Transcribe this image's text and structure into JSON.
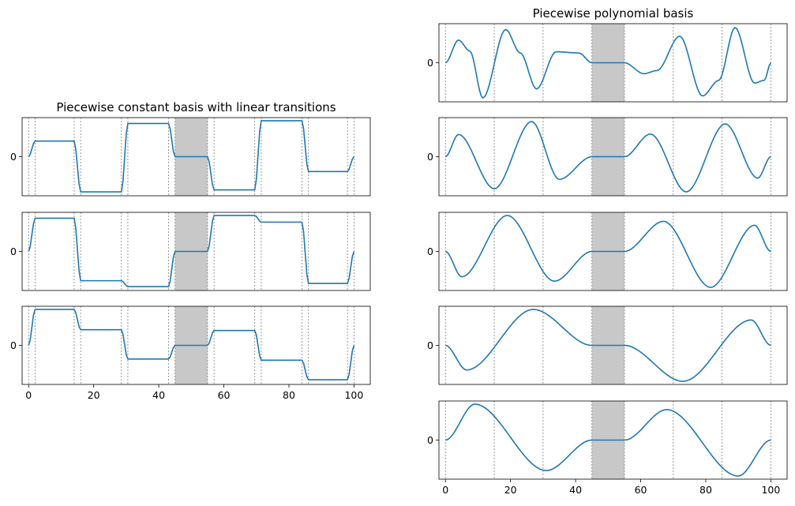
{
  "chart_data": [
    {
      "type": "line",
      "title": "Piecewise constant basis with linear transitions",
      "xlim": [
        -2,
        105
      ],
      "xticks": [
        0,
        20,
        40,
        60,
        80,
        100
      ],
      "yticks": [
        0
      ],
      "ylim": [
        -1.0,
        1.0
      ],
      "highlight_span": [
        45,
        55
      ],
      "knots": [
        0,
        2,
        14,
        16,
        28.5,
        30.5,
        43,
        45,
        55,
        57,
        69.5,
        71.5,
        84,
        86,
        98,
        100
      ],
      "line_color": "#1f77b4",
      "span_color": "#c8c8c8",
      "series": [
        {
          "x": [
            0,
            2,
            14,
            16,
            28.5,
            30.5,
            43,
            45,
            55,
            57,
            69.5,
            71.5,
            84,
            86,
            98,
            100
          ],
          "y": [
            0,
            0.4,
            0.4,
            -0.9,
            -0.9,
            0.85,
            0.85,
            0,
            0,
            -0.85,
            -0.85,
            0.92,
            0.92,
            -0.38,
            -0.38,
            0
          ]
        },
        {
          "x": [
            0,
            2,
            14,
            16,
            28.5,
            30.5,
            43,
            45,
            55,
            57,
            69.5,
            71.5,
            84,
            86,
            98,
            100
          ],
          "y": [
            0,
            0.85,
            0.85,
            -0.75,
            -0.75,
            -0.9,
            -0.9,
            0,
            0,
            0.92,
            0.92,
            0.75,
            0.75,
            -0.82,
            -0.82,
            0
          ]
        },
        {
          "x": [
            0,
            2,
            14,
            16,
            28.5,
            30.5,
            43,
            45,
            55,
            57,
            69.5,
            71.5,
            84,
            86,
            98,
            100
          ],
          "y": [
            0,
            0.92,
            0.92,
            0.4,
            0.4,
            -0.35,
            -0.35,
            0,
            0,
            0.38,
            0.38,
            -0.38,
            -0.38,
            -0.88,
            -0.88,
            0
          ]
        }
      ]
    },
    {
      "type": "line",
      "title": "Piecewise polynomial basis",
      "xlim": [
        -2,
        105
      ],
      "xticks": [
        0,
        20,
        40,
        60,
        80,
        100
      ],
      "yticks": [
        0
      ],
      "ylim": [
        -1.0,
        1.0
      ],
      "highlight_span": [
        45,
        55
      ],
      "knots": [
        0,
        15,
        30,
        45,
        55,
        70,
        85,
        100
      ],
      "line_color": "#1f77b4",
      "span_color": "#c8c8c8",
      "series": [
        {
          "x": [
            0,
            4,
            7.5,
            11.5,
            18.5,
            23,
            28,
            34,
            41,
            45,
            55,
            61,
            65,
            72,
            79,
            84,
            89,
            95,
            98,
            100
          ],
          "y": [
            0,
            0.58,
            0.3,
            -0.9,
            0.85,
            0.25,
            -0.67,
            0.28,
            0.25,
            0,
            0,
            -0.28,
            -0.2,
            0.68,
            -0.85,
            -0.45,
            0.9,
            -0.52,
            -0.45,
            0
          ]
        },
        {
          "x": [
            0,
            4,
            15,
            26.5,
            35,
            45,
            55,
            63,
            74,
            86,
            96,
            100
          ],
          "y": [
            0,
            0.57,
            -0.82,
            0.9,
            -0.58,
            0,
            0,
            0.58,
            -0.9,
            0.84,
            -0.55,
            0
          ]
        },
        {
          "x": [
            0,
            5,
            19,
            33.5,
            45,
            55,
            67,
            81.5,
            95,
            100
          ],
          "y": [
            0,
            -0.65,
            0.92,
            -0.76,
            0,
            0,
            0.77,
            -0.92,
            0.67,
            0
          ]
        },
        {
          "x": [
            0,
            6.5,
            27,
            45,
            55,
            73,
            94,
            100
          ],
          "y": [
            0,
            -0.63,
            0.92,
            0,
            0,
            -0.92,
            0.65,
            0
          ]
        },
        {
          "x": [
            0,
            9,
            31,
            45,
            55,
            68,
            90,
            100
          ],
          "y": [
            0,
            0.92,
            -0.78,
            0,
            0,
            0.78,
            -0.92,
            0
          ]
        }
      ]
    }
  ]
}
